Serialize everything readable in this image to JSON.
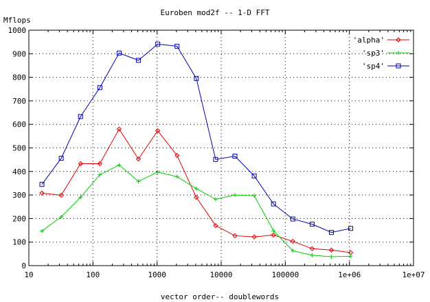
{
  "chart_data": {
    "type": "line",
    "title": "Euroben mod2f -- 1-D FFT",
    "xlabel": "vector order-- doublewords",
    "ylabel": "Mflops",
    "xscale": "log",
    "xlim": [
      10,
      10000000
    ],
    "ylim": [
      0,
      1000
    ],
    "grid": true,
    "legend_position": "top-right",
    "x_tick_labels": [
      "10",
      "100",
      "1000",
      "10000",
      "100000",
      "1e+06",
      "1e+07"
    ],
    "x_tick_values": [
      10,
      100,
      1000,
      10000,
      100000,
      1000000,
      10000000
    ],
    "y_tick_labels": [
      "0",
      "100",
      "200",
      "300",
      "400",
      "500",
      "600",
      "700",
      "800",
      "900",
      "1000"
    ],
    "y_tick_values": [
      0,
      100,
      200,
      300,
      400,
      500,
      600,
      700,
      800,
      900,
      1000
    ],
    "x": [
      16,
      32,
      64,
      128,
      256,
      512,
      1024,
      2048,
      4096,
      8192,
      16384,
      32768,
      65536,
      131072,
      262144,
      524288,
      1048576
    ],
    "series": [
      {
        "name": "'alpha'",
        "color": "#e00000",
        "marker": "diamond",
        "values": [
          308,
          299,
          433,
          433,
          580,
          453,
          573,
          468,
          290,
          170,
          127,
          122,
          130,
          103,
          72,
          66,
          55
        ]
      },
      {
        "name": "'sp3'",
        "color": "#00cc00",
        "marker": "plus",
        "values": [
          147,
          207,
          290,
          386,
          427,
          358,
          397,
          378,
          327,
          282,
          300,
          297,
          148,
          63,
          44,
          38,
          40
        ]
      },
      {
        "name": "'sp4'",
        "color": "#0000b0",
        "marker": "square",
        "values": [
          345,
          456,
          633,
          756,
          903,
          872,
          941,
          932,
          795,
          451,
          465,
          381,
          262,
          198,
          176,
          141,
          158
        ]
      }
    ]
  }
}
